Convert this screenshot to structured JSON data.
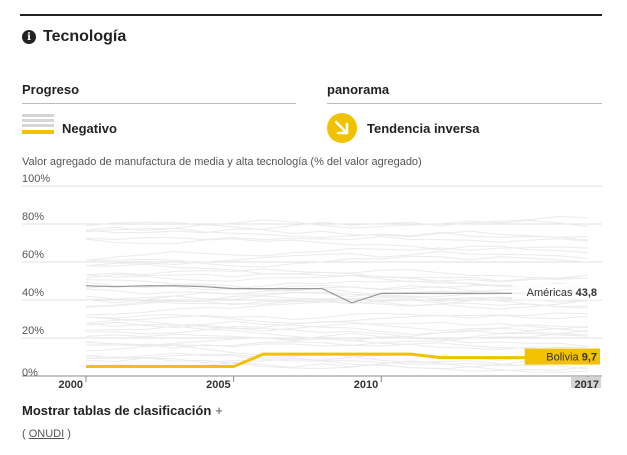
{
  "header": {
    "title": "Tecnología",
    "info_icon": "info-icon"
  },
  "progress": {
    "heading": "Progreso",
    "label": "Negativo",
    "icon": "stacked-bars-icon",
    "accent": "#f2c200"
  },
  "panorama": {
    "heading": "panorama",
    "label": "Tendencia inversa",
    "icon": "arrow-down-right-icon"
  },
  "chart_subtitle": "Valor agregado de manufactura de media y alta tecnología (% del valor agregado)",
  "chart_data": {
    "type": "line",
    "x": [
      2000,
      2001,
      2002,
      2003,
      2004,
      2005,
      2006,
      2007,
      2008,
      2009,
      2010,
      2011,
      2012,
      2013,
      2014,
      2015,
      2016,
      2017
    ],
    "xticks": [
      "2000",
      "2005",
      "2010",
      "2017"
    ],
    "yticks": [
      "0%",
      "20%",
      "40%",
      "60%",
      "80%",
      "100%"
    ],
    "ylim": [
      0,
      100
    ],
    "grid": true,
    "series": [
      {
        "name": "Américas",
        "value_label": "43,8",
        "color": "#999999",
        "values": [
          47.5,
          47,
          47.5,
          47.5,
          47,
          46,
          46,
          46,
          46,
          38.5,
          43.5,
          43.5,
          43.5,
          43.5,
          43.5,
          43.5,
          43.8,
          43.8
        ]
      },
      {
        "name": "Bolivia",
        "value_label": "9,7",
        "color": "#f2c200",
        "values": [
          5,
          5,
          5,
          5,
          5,
          5,
          11.5,
          11.5,
          11.5,
          11.5,
          11.5,
          11.5,
          9.7,
          9.7,
          9.7,
          9.7,
          9.7,
          9.7
        ]
      }
    ]
  },
  "ranking": {
    "label": "Mostrar tablas de clasificación",
    "plus": "+"
  },
  "source": {
    "open": "(",
    "link": "ONUDI",
    "close": ")"
  }
}
